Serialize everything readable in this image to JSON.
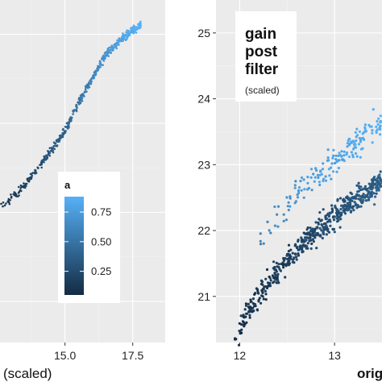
{
  "colors": {
    "panel_bg": "#ebebeb",
    "grid_major": "#ffffff",
    "grid_minor": "#f3f3f3",
    "low": "#132b43",
    "high": "#56b1f7"
  },
  "chart_data": [
    {
      "type": "scatter",
      "title": "",
      "xlabel": "(scaled)",
      "ylabel": "",
      "xlim": [
        12.6,
        18.7
      ],
      "ylim": [
        0,
        1
      ],
      "x_ticks": [
        15.0,
        17.5
      ],
      "x_tick_labels": [
        "15.0",
        "17.5"
      ],
      "grid": true,
      "color_variable": "a",
      "note": "points lie along a rising band colored by a",
      "series": [
        {
          "x": [
            12.6,
            13.0,
            13.5,
            14.0,
            14.5,
            15.0,
            15.5,
            16.0,
            16.5,
            17.0,
            17.5
          ],
          "y": [
            0.4,
            0.42,
            0.46,
            0.51,
            0.56,
            0.62,
            0.7,
            0.77,
            0.84,
            0.88,
            0.91
          ],
          "a": [
            0.12,
            0.14,
            0.18,
            0.25,
            0.33,
            0.41,
            0.5,
            0.6,
            0.7,
            0.78,
            0.85
          ]
        }
      ],
      "legend": {
        "title": "a",
        "position": "bottom-right",
        "breaks": [
          0.25,
          0.5,
          0.75
        ],
        "break_labels": [
          "0.25",
          "0.50",
          "0.75"
        ],
        "range": [
          0.05,
          0.88
        ]
      }
    },
    {
      "type": "scatter",
      "title": "",
      "xlabel": "orig",
      "ylabel": "",
      "xlim": [
        11.75,
        13.5
      ],
      "ylim": [
        20.3,
        25.5
      ],
      "x_ticks": [
        12,
        13
      ],
      "x_tick_labels": [
        "12",
        "13"
      ],
      "y_ticks": [
        21,
        22,
        23,
        24,
        25
      ],
      "y_tick_labels": [
        "21",
        "22",
        "23",
        "24",
        "25"
      ],
      "grid": true,
      "color_variable": "a",
      "note": "two diverging bands: lighter upper band and darker lower band",
      "series": [
        {
          "name": "",
          "x": [
            11.95,
            12.1,
            12.3,
            12.5,
            12.7,
            12.9,
            13.1,
            13.3,
            13.45
          ],
          "y": [
            20.35,
            20.8,
            21.2,
            21.55,
            21.85,
            22.1,
            22.35,
            22.55,
            22.7
          ],
          "a": [
            0.1,
            0.12,
            0.15,
            0.18,
            0.22,
            0.26,
            0.3,
            0.34,
            0.37
          ]
        },
        {
          "name": "",
          "x": [
            12.2,
            12.4,
            12.6,
            12.8,
            13.0,
            13.2,
            13.45
          ],
          "y": [
            21.9,
            22.2,
            22.55,
            22.8,
            23.05,
            23.3,
            23.55
          ],
          "a": [
            0.6,
            0.66,
            0.72,
            0.76,
            0.8,
            0.84,
            0.88
          ]
        }
      ],
      "annotation": {
        "lines": [
          "gain",
          "post",
          "filter"
        ],
        "sub": "(scaled)"
      }
    }
  ]
}
